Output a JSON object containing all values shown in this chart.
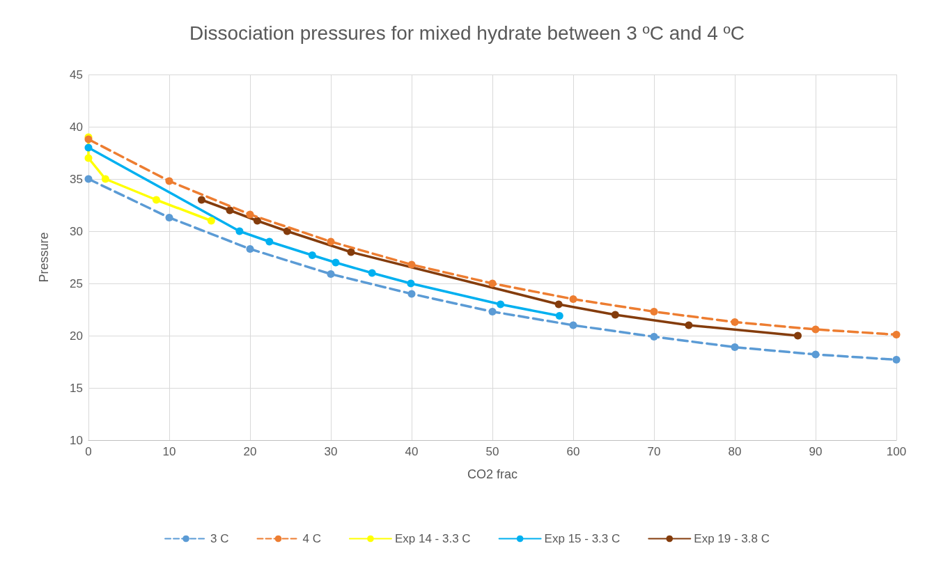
{
  "chart_data": {
    "type": "line",
    "title": "Dissociation pressures for mixed hydrate between 3 ºC and 4 ºC",
    "xlabel": "CO2 frac",
    "ylabel": "Pressure",
    "xlim": [
      0,
      100
    ],
    "xticks": [
      0,
      10,
      20,
      30,
      40,
      50,
      60,
      70,
      80,
      90,
      100
    ],
    "ylim": [
      10,
      45
    ],
    "yticks": [
      10,
      15,
      20,
      25,
      30,
      35,
      40,
      45
    ],
    "grid": true,
    "legend": "bottom",
    "marker": "circle",
    "series": [
      {
        "name": "3 C",
        "color": "#5b9bd5",
        "line_style": "dashed",
        "x": [
          0,
          10,
          20,
          30,
          40,
          50,
          60,
          70,
          80,
          90,
          100
        ],
        "values": [
          35.0,
          31.3,
          28.3,
          25.9,
          24.0,
          22.3,
          21.0,
          19.9,
          18.9,
          18.2,
          17.7
        ]
      },
      {
        "name": "4 C",
        "color": "#ed7d31",
        "line_style": "dashed",
        "x": [
          0,
          10,
          20,
          30,
          40,
          50,
          60,
          70,
          80,
          90,
          100
        ],
        "values": [
          38.8,
          34.8,
          31.6,
          29.0,
          26.8,
          25.0,
          23.5,
          22.3,
          21.3,
          20.6,
          20.1
        ]
      },
      {
        "name": "Exp 14 - 3.3 C",
        "color": "#ffff00",
        "line_style": "solid",
        "x": [
          0,
          0,
          2.1,
          8.4,
          15.2
        ],
        "values": [
          39.0,
          37.0,
          35.0,
          33.0,
          31.0
        ]
      },
      {
        "name": "Exp 15 - 3.3 C",
        "color": "#00b0f0",
        "line_style": "solid",
        "x": [
          0,
          18.7,
          22.4,
          27.7,
          30.6,
          35.1,
          39.9,
          51.0,
          58.3
        ],
        "values": [
          38.0,
          30.0,
          29.0,
          27.7,
          27.0,
          26.0,
          25.0,
          23.0,
          21.9
        ]
      },
      {
        "name": "Exp 19 - 3.8 C",
        "color": "#843c0c",
        "line_style": "solid",
        "x": [
          14.0,
          17.5,
          20.9,
          24.6,
          32.5,
          58.2,
          65.2,
          74.3,
          87.8
        ],
        "values": [
          33.0,
          32.0,
          31.0,
          30.0,
          28.0,
          23.0,
          22.0,
          21.0,
          20.0
        ]
      }
    ]
  }
}
